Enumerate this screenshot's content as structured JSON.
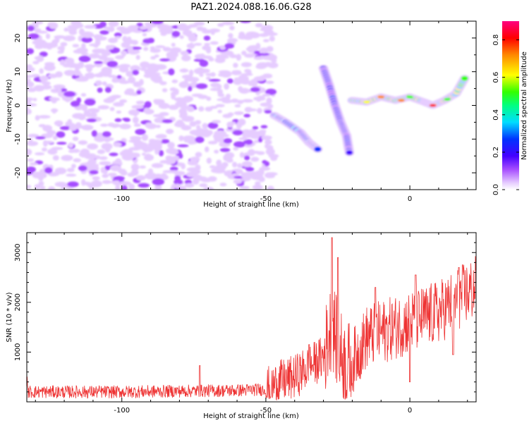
{
  "title": "PAZ1.2024.088.16.06.G28",
  "chart_data": [
    {
      "type": "heatmap",
      "xlabel": "Height of straight line (km)",
      "ylabel": "Frequency (Hz)",
      "xlim": [
        -133,
        23
      ],
      "ylim": [
        -25,
        25
      ],
      "x_ticks": [
        -100,
        -50,
        0
      ],
      "y_ticks": [
        -20,
        -10,
        0,
        10,
        20
      ],
      "x_tick_labels": [
        "-100",
        "-50",
        "0"
      ],
      "y_tick_labels": [
        "-20",
        "-10",
        "0",
        "10",
        "20"
      ],
      "colorbar": {
        "label": "Normalized spectral amplitude",
        "range": [
          0,
          0.9
        ],
        "ticks": [
          0.0,
          0.2,
          0.4,
          0.6,
          0.8
        ],
        "tick_labels": [
          "0.0",
          "0.2",
          "0.4",
          "0.6",
          "0.8"
        ]
      },
      "features": [
        {
          "description": "scattered low-amplitude noise",
          "x_range": [
            -133,
            -50
          ],
          "y_range": [
            -25,
            25
          ],
          "amplitude": 0.15
        },
        {
          "description": "descending track",
          "points": [
            [
              -47,
              -3
            ],
            [
              -43,
              -5
            ],
            [
              -38,
              -8
            ],
            [
              -35,
              -11
            ],
            [
              -32,
              -13
            ]
          ],
          "amplitude": 0.35
        },
        {
          "description": "upper branch",
          "points": [
            [
              -30,
              11
            ],
            [
              -28,
              6
            ],
            [
              -26,
              0
            ],
            [
              -24,
              -5
            ],
            [
              -22,
              -9
            ],
            [
              -21,
              -14
            ]
          ],
          "amplitude": 0.25
        },
        {
          "description": "horizontal band",
          "points": [
            [
              -20,
              1.5
            ],
            [
              -15,
              1
            ],
            [
              -10,
              2.5
            ],
            [
              -5,
              1.5
            ],
            [
              0,
              2.5
            ],
            [
              5,
              1
            ],
            [
              8,
              0
            ],
            [
              12,
              1.5
            ],
            [
              16,
              3.5
            ],
            [
              19,
              8
            ]
          ],
          "amplitude": 0.6
        }
      ]
    },
    {
      "type": "line",
      "xlabel": "Height of straight line (km)",
      "ylabel": "SNR (10 * v/v)",
      "xlim": [
        -133,
        23
      ],
      "ylim": [
        0,
        3400
      ],
      "x_ticks": [
        -100,
        -50,
        0
      ],
      "y_ticks": [
        1000,
        2000,
        3000
      ],
      "x_tick_labels": [
        "-100",
        "-50",
        "0"
      ],
      "y_tick_labels": [
        "1000",
        "2000",
        "3000"
      ],
      "series": [
        {
          "color": "#ee3333",
          "trend": [
            [
              -133,
              200
            ],
            [
              -100,
              200
            ],
            [
              -60,
              230
            ],
            [
              -50,
              250
            ],
            [
              -45,
              400
            ],
            [
              -40,
              500
            ],
            [
              -35,
              700
            ],
            [
              -30,
              900
            ],
            [
              -27,
              1600
            ],
            [
              -25,
              1100
            ],
            [
              -22,
              700
            ],
            [
              -20,
              800
            ],
            [
              -15,
              1300
            ],
            [
              -10,
              1400
            ],
            [
              -5,
              1500
            ],
            [
              0,
              1600
            ],
            [
              5,
              1700
            ],
            [
              10,
              1800
            ],
            [
              15,
              2000
            ],
            [
              20,
              2200
            ],
            [
              23,
              2300
            ]
          ],
          "peaks": [
            [
              -133,
              500
            ],
            [
              -73,
              730
            ],
            [
              -35,
              1150
            ],
            [
              -27,
              3300
            ],
            [
              -25,
              2900
            ],
            [
              -12,
              2300
            ],
            [
              2,
              2550
            ],
            [
              17,
              2700
            ],
            [
              23,
              2650
            ]
          ],
          "dips": [
            [
              0,
              400
            ],
            [
              15,
              950
            ]
          ]
        }
      ]
    }
  ]
}
